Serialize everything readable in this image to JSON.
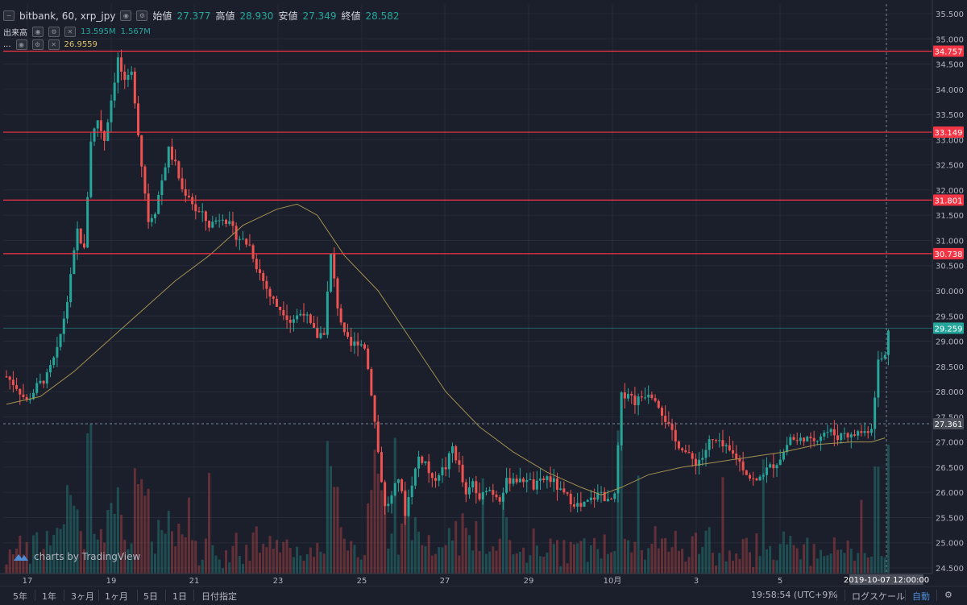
{
  "header": {
    "symbol": "bitbank, 60, xrp_jpy",
    "open_label": "始値",
    "open_value": "27.377",
    "high_label": "高値",
    "high_value": "28.930",
    "low_label": "安値",
    "low_value": "27.349",
    "close_label": "終値",
    "close_value": "28.582",
    "volume_label": "出来高",
    "volume_v1": "13.595M",
    "volume_v2": "1.567M",
    "ma_label": "...",
    "ma_value": "26.9559"
  },
  "watermark": "charts by TradingView",
  "chart_data": {
    "type": "candlestick",
    "title": "bitbank, 60, xrp_jpy",
    "ylim": [
      24.5,
      35.6
    ],
    "y_ticks": [
      "35.500",
      "35.000",
      "34.500",
      "34.000",
      "33.500",
      "33.000",
      "32.500",
      "32.000",
      "31.500",
      "31.000",
      "30.500",
      "30.000",
      "29.500",
      "29.000",
      "28.500",
      "28.000",
      "27.500",
      "27.000",
      "26.500",
      "26.000",
      "25.500",
      "25.000",
      "24.500"
    ],
    "x_ticks": [
      "17",
      "19",
      "21",
      "23",
      "25",
      "27",
      "29",
      "10月",
      "3",
      "5"
    ],
    "horizontal_lines": [
      {
        "value": 34.757,
        "label": "34.757",
        "color": "#f23645"
      },
      {
        "value": 33.149,
        "label": "33.149",
        "color": "#f23645"
      },
      {
        "value": 31.801,
        "label": "31.801",
        "color": "#f23645"
      },
      {
        "value": 30.738,
        "label": "30.738",
        "color": "#f23645"
      }
    ],
    "last_price": {
      "value": 29.259,
      "label": "29.259",
      "color": "#26a69a"
    },
    "crosshair": {
      "price": 27.361,
      "price_label": "27.361",
      "time_label": "2019-10-07 12:00:00"
    },
    "price_path": [
      [
        0,
        28.3
      ],
      [
        1.5,
        28.1
      ],
      [
        3,
        27.8
      ],
      [
        4.5,
        28.1
      ],
      [
        6,
        28.3
      ],
      [
        7.5,
        28.8
      ],
      [
        9,
        29.8
      ],
      [
        10.5,
        31.2
      ],
      [
        11.5,
        30.8
      ],
      [
        12.5,
        33.0
      ],
      [
        13.5,
        33.4
      ],
      [
        14.5,
        33.0
      ],
      [
        15.5,
        33.8
      ],
      [
        16.5,
        34.6
      ],
      [
        17.5,
        34.1
      ],
      [
        18.5,
        34.3
      ],
      [
        19,
        33.8
      ],
      [
        20,
        32.5
      ],
      [
        21,
        31.4
      ],
      [
        22,
        31.6
      ],
      [
        23,
        32.2
      ],
      [
        24,
        32.8
      ],
      [
        25,
        32.5
      ],
      [
        26,
        32.0
      ],
      [
        27,
        31.9
      ],
      [
        28,
        31.6
      ],
      [
        29,
        31.5
      ],
      [
        30,
        31.3
      ],
      [
        31,
        31.4
      ],
      [
        32,
        31.5
      ],
      [
        33,
        31.3
      ],
      [
        34,
        31.1
      ],
      [
        35,
        31.0
      ],
      [
        36,
        30.9
      ],
      [
        37,
        30.5
      ],
      [
        38,
        30.2
      ],
      [
        39,
        29.9
      ],
      [
        40,
        29.7
      ],
      [
        41,
        29.6
      ],
      [
        42,
        29.4
      ],
      [
        43,
        29.5
      ],
      [
        44,
        29.6
      ],
      [
        45,
        29.3
      ],
      [
        46,
        29.1
      ],
      [
        47,
        29.2
      ],
      [
        48,
        30.7
      ],
      [
        49,
        29.7
      ],
      [
        50,
        29.1
      ],
      [
        51,
        28.9
      ],
      [
        52,
        29.0
      ],
      [
        53,
        28.9
      ],
      [
        54,
        28.0
      ],
      [
        55,
        26.8
      ],
      [
        56,
        25.7
      ],
      [
        57,
        25.9
      ],
      [
        58,
        26.3
      ],
      [
        59,
        25.6
      ],
      [
        60,
        26.2
      ],
      [
        61,
        26.7
      ],
      [
        62,
        26.6
      ],
      [
        63,
        26.2
      ],
      [
        64,
        26.4
      ],
      [
        65,
        26.5
      ],
      [
        66,
        26.9
      ],
      [
        67,
        26.5
      ],
      [
        68,
        25.9
      ],
      [
        69,
        26.2
      ],
      [
        70,
        25.8
      ],
      [
        71,
        26.1
      ],
      [
        72,
        26.0
      ],
      [
        73,
        25.9
      ],
      [
        74,
        26.2
      ],
      [
        75,
        26.3
      ],
      [
        76,
        26.2
      ],
      [
        77,
        26.3
      ],
      [
        78,
        26.1
      ],
      [
        79,
        26.2
      ],
      [
        80,
        26.3
      ],
      [
        81,
        26.2
      ],
      [
        82,
        26.0
      ],
      [
        83,
        25.9
      ],
      [
        84,
        25.8
      ],
      [
        85,
        25.7
      ],
      [
        86,
        25.8
      ],
      [
        87,
        25.9
      ],
      [
        88,
        26.0
      ],
      [
        89,
        25.8
      ],
      [
        90,
        25.9
      ],
      [
        91,
        27.9
      ],
      [
        92,
        28.0
      ],
      [
        93,
        27.8
      ],
      [
        94,
        27.9
      ],
      [
        95,
        28.0
      ],
      [
        96,
        27.9
      ],
      [
        97,
        27.6
      ],
      [
        98,
        27.3
      ],
      [
        99,
        27.0
      ],
      [
        100,
        26.9
      ],
      [
        101,
        26.7
      ],
      [
        102,
        26.6
      ],
      [
        103,
        26.7
      ],
      [
        104,
        27.0
      ],
      [
        105,
        27.0
      ],
      [
        106,
        26.9
      ],
      [
        107,
        26.8
      ],
      [
        108,
        26.7
      ],
      [
        109,
        26.5
      ],
      [
        110,
        26.3
      ],
      [
        111,
        26.2
      ],
      [
        112,
        26.4
      ],
      [
        113,
        26.5
      ],
      [
        114,
        26.6
      ],
      [
        115,
        26.8
      ],
      [
        116,
        27.1
      ],
      [
        117,
        27.0
      ],
      [
        118,
        27.1
      ],
      [
        119,
        27.0
      ],
      [
        120,
        27.1
      ],
      [
        121,
        27.2
      ],
      [
        122,
        27.2
      ],
      [
        123,
        27.1
      ],
      [
        124,
        27.2
      ],
      [
        125,
        27.1
      ],
      [
        126,
        27.2
      ],
      [
        127,
        27.2
      ],
      [
        128,
        27.3
      ],
      [
        129,
        28.6
      ],
      [
        130,
        28.7
      ],
      [
        130.5,
        29.259
      ]
    ],
    "moving_average": [
      [
        0,
        27.75
      ],
      [
        5,
        27.9
      ],
      [
        10,
        28.4
      ],
      [
        15,
        29.0
      ],
      [
        20,
        29.6
      ],
      [
        25,
        30.2
      ],
      [
        30,
        30.7
      ],
      [
        35,
        31.3
      ],
      [
        40,
        31.62
      ],
      [
        43,
        31.72
      ],
      [
        46,
        31.5
      ],
      [
        50,
        30.7
      ],
      [
        55,
        30.0
      ],
      [
        60,
        29.0
      ],
      [
        65,
        28.0
      ],
      [
        70,
        27.3
      ],
      [
        75,
        26.8
      ],
      [
        80,
        26.4
      ],
      [
        85,
        26.1
      ],
      [
        88,
        25.95
      ],
      [
        91,
        26.1
      ],
      [
        95,
        26.35
      ],
      [
        100,
        26.5
      ],
      [
        105,
        26.6
      ],
      [
        110,
        26.7
      ],
      [
        115,
        26.8
      ],
      [
        120,
        26.95
      ],
      [
        125,
        27.0
      ],
      [
        128,
        27.0
      ],
      [
        130,
        27.08
      ]
    ],
    "colors": {
      "up": "#26a69a",
      "down": "#ef5350",
      "ma": "#a39150",
      "hline": "#f23645",
      "grid": "#262a36",
      "bg": "#1b1e2b"
    }
  },
  "toolbar": {
    "ranges": [
      "5年",
      "1年",
      "3ヶ月",
      "1ヶ月",
      "5日",
      "1日",
      "日付指定"
    ],
    "time": "19:58:54 (UTC+9)",
    "percent": "%",
    "log": "ログスケール",
    "auto": "自動",
    "gear_icon": "gear-icon"
  }
}
